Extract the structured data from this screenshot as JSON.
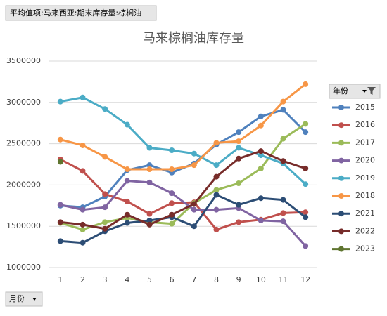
{
  "header": "平均值项:马来西亚:期末库存量:棕榈油",
  "legend_title": "年份",
  "axis_field": "月份",
  "chart_data": {
    "type": "line",
    "title": "马来棕榈油库存量",
    "categories": [
      "1",
      "2",
      "3",
      "4",
      "5",
      "6",
      "7",
      "8",
      "9",
      "10",
      "11",
      "12"
    ],
    "ylim": [
      1000000,
      3500000
    ],
    "yticks": [
      1000000,
      1500000,
      2000000,
      2500000,
      3000000,
      3500000
    ],
    "grid": true,
    "legend": "right",
    "series": [
      {
        "name": "2015",
        "color": "#4f81bd",
        "values": [
          1750000,
          1730000,
          1860000,
          2180000,
          2240000,
          2150000,
          2260000,
          2490000,
          2640000,
          2830000,
          2910000,
          2640000
        ]
      },
      {
        "name": "2016",
        "color": "#c0504d",
        "values": [
          2310000,
          2170000,
          1890000,
          1800000,
          1650000,
          1780000,
          1790000,
          1460000,
          1550000,
          1580000,
          1660000,
          1670000
        ]
      },
      {
        "name": "2017",
        "color": "#9bbb59",
        "values": [
          1540000,
          1460000,
          1550000,
          1600000,
          1550000,
          1530000,
          1780000,
          1940000,
          2020000,
          2200000,
          2560000,
          2740000
        ]
      },
      {
        "name": "2020",
        "color": "#8064a2",
        "values": [
          1760000,
          1700000,
          1730000,
          2050000,
          2030000,
          1900000,
          1700000,
          1700000,
          1720000,
          1570000,
          1560000,
          1260000
        ]
      },
      {
        "name": "2019",
        "color": "#4bacc6",
        "values": [
          3010000,
          3060000,
          2920000,
          2730000,
          2450000,
          2420000,
          2380000,
          2240000,
          2450000,
          2360000,
          2260000,
          2010000
        ]
      },
      {
        "name": "2018",
        "color": "#f79646",
        "values": [
          2550000,
          2480000,
          2340000,
          2190000,
          2190000,
          2190000,
          2240000,
          2510000,
          2530000,
          2720000,
          3010000,
          3220000
        ]
      },
      {
        "name": "2021",
        "color": "#2c4d75",
        "values": [
          1320000,
          1300000,
          1440000,
          1540000,
          1570000,
          1610000,
          1500000,
          1880000,
          1760000,
          1840000,
          1820000,
          1610000
        ]
      },
      {
        "name": "2022",
        "color": "#772c2a",
        "values": [
          1550000,
          1520000,
          1470000,
          1640000,
          1520000,
          1640000,
          1770000,
          2100000,
          2320000,
          2410000,
          2290000,
          2200000
        ]
      },
      {
        "name": "2023",
        "color": "#5f7530",
        "values": [
          2280000,
          null,
          null,
          null,
          null,
          null,
          null,
          null,
          null,
          null,
          null,
          null
        ]
      }
    ]
  }
}
